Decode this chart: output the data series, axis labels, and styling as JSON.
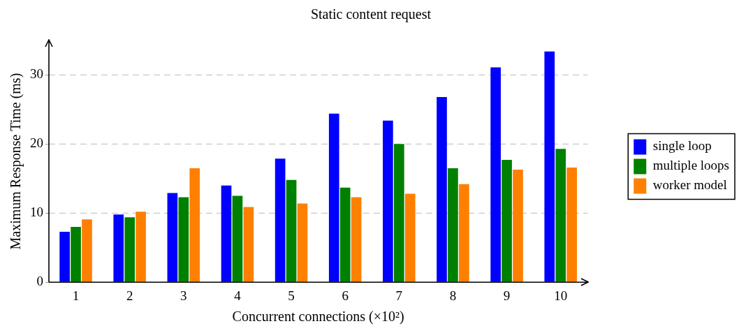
{
  "chart_data": {
    "type": "bar",
    "title": "Static content request",
    "xlabel": "Concurrent connections (×10²)",
    "ylabel": "Maximum Response Time (ms)",
    "categories": [
      "1",
      "2",
      "3",
      "4",
      "5",
      "6",
      "7",
      "8",
      "9",
      "10"
    ],
    "series": [
      {
        "name": "single loop",
        "color": "#0000ff",
        "values": [
          7.3,
          9.8,
          12.9,
          14.0,
          17.9,
          24.4,
          23.4,
          26.8,
          31.1,
          33.4
        ]
      },
      {
        "name": "multiple loops",
        "color": "#008000",
        "values": [
          8.0,
          9.4,
          12.3,
          12.5,
          14.8,
          13.7,
          20.0,
          16.5,
          17.7,
          19.3
        ]
      },
      {
        "name": "worker model",
        "color": "#ff8000",
        "values": [
          9.1,
          10.2,
          16.5,
          10.9,
          11.4,
          12.3,
          12.8,
          14.2,
          16.3,
          16.6
        ]
      }
    ],
    "ylim": [
      0,
      35
    ],
    "yticks": [
      0,
      10,
      20,
      30
    ],
    "grid": "y",
    "legend": "right"
  }
}
